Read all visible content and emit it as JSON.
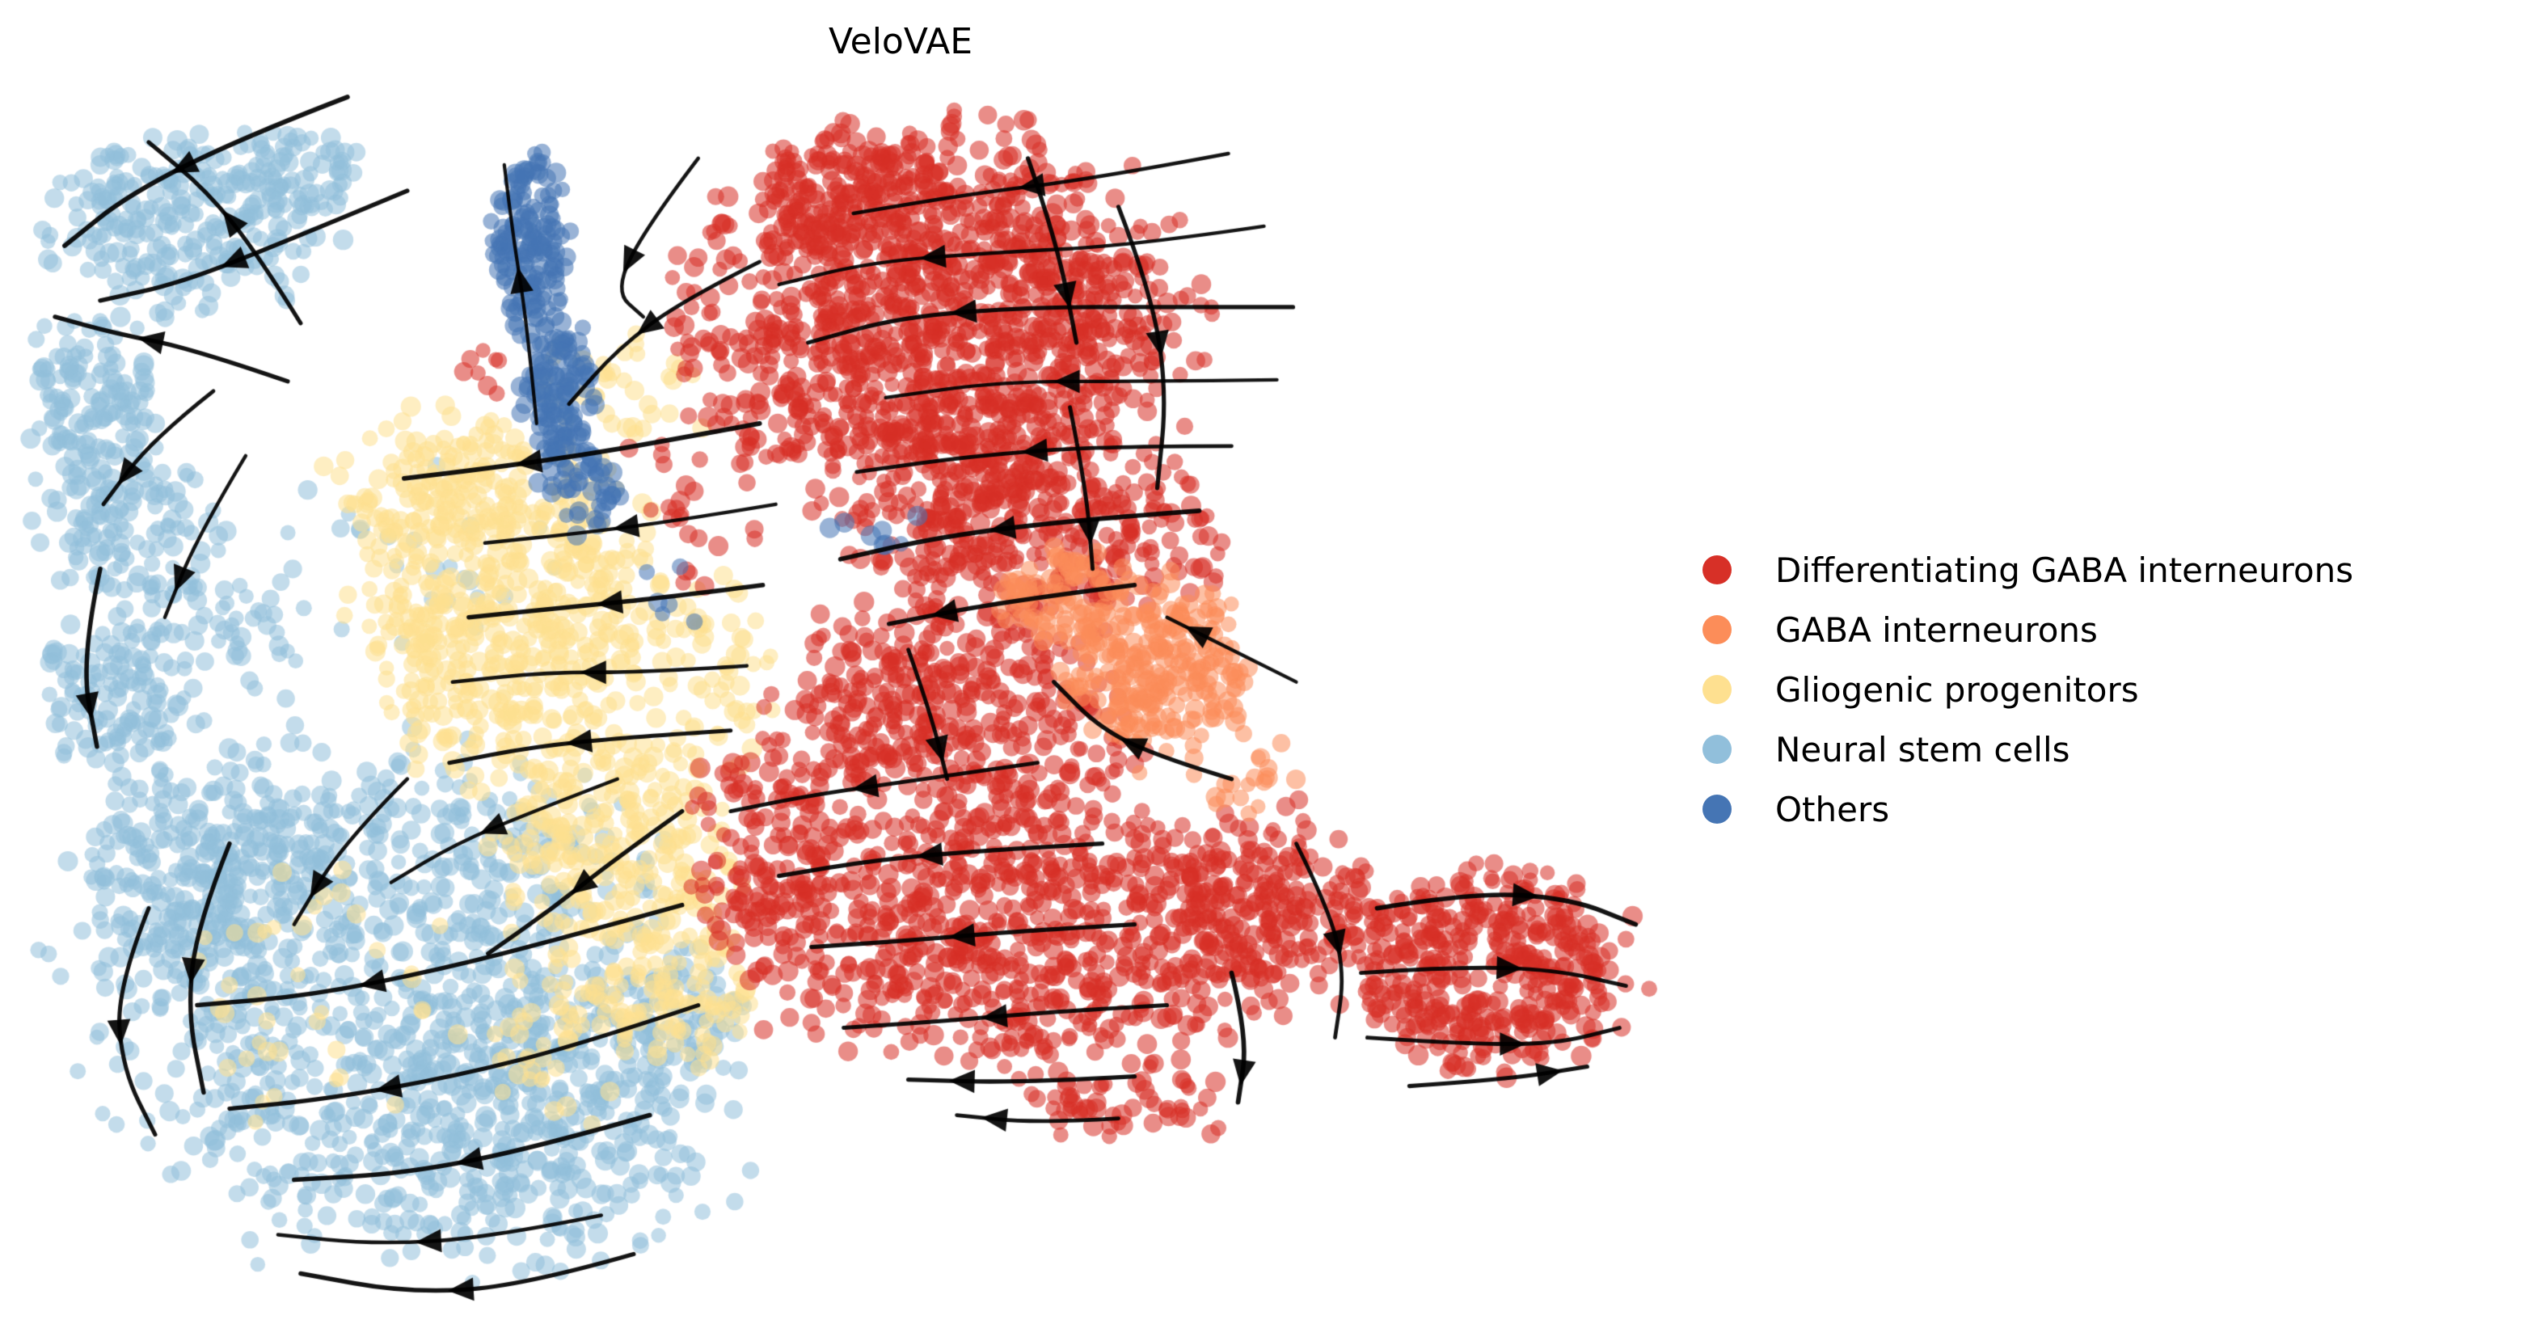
{
  "chart_data": {
    "type": "scatter",
    "title": "VeloVAE",
    "xlabel": "",
    "ylabel": "",
    "description": "UMAP embedding scatter plot of cells colored by cell type with RNA-velocity streamlines (black curves with arrowheads) overlaid.",
    "layout": {
      "space": [
        1561,
        817
      ],
      "axes": "off",
      "grid": false,
      "legend_position": "right",
      "background": "#ffffff"
    },
    "stream_color": "#000000",
    "series": [
      {
        "name": "Differentiating GABA interneurons",
        "color": "#d73027"
      },
      {
        "name": "GABA interneurons",
        "color": "#fc8d59"
      },
      {
        "name": "Gliogenic progenitors",
        "color": "#fee090"
      },
      {
        "name": "Neural stem cells",
        "color": "#91bfdb"
      },
      {
        "name": "Others",
        "color": "#4575b4"
      }
    ],
    "clusters": [
      {
        "series": "Neural stem cells",
        "blobs": [
          {
            "cx": 115,
            "cy": 135,
            "rx": 85,
            "ry": 55,
            "n": 260
          },
          {
            "cx": 185,
            "cy": 105,
            "rx": 40,
            "ry": 25,
            "n": 60
          },
          {
            "cx": 55,
            "cy": 250,
            "rx": 40,
            "ry": 60,
            "n": 140
          },
          {
            "cx": 80,
            "cy": 330,
            "rx": 55,
            "ry": 50,
            "n": 130
          },
          {
            "cx": 75,
            "cy": 430,
            "rx": 50,
            "ry": 55,
            "n": 140
          },
          {
            "cx": 150,
            "cy": 390,
            "rx": 45,
            "ry": 45,
            "n": 40
          },
          {
            "cx": 230,
            "cy": 610,
            "rx": 175,
            "ry": 155,
            "n": 900
          },
          {
            "cx": 130,
            "cy": 540,
            "rx": 80,
            "ry": 70,
            "n": 220
          },
          {
            "cx": 330,
            "cy": 700,
            "rx": 120,
            "ry": 90,
            "n": 300
          },
          {
            "cx": 420,
            "cy": 630,
            "rx": 40,
            "ry": 45,
            "n": 80
          },
          {
            "cx": 250,
            "cy": 350,
            "rx": 90,
            "ry": 70,
            "n": 25
          }
        ]
      },
      {
        "series": "Gliogenic progenitors",
        "blobs": [
          {
            "cx": 315,
            "cy": 380,
            "rx": 95,
            "ry": 100,
            "n": 550
          },
          {
            "cx": 270,
            "cy": 300,
            "rx": 60,
            "ry": 45,
            "n": 120
          },
          {
            "cx": 380,
            "cy": 520,
            "rx": 75,
            "ry": 70,
            "n": 250
          },
          {
            "cx": 420,
            "cy": 610,
            "rx": 45,
            "ry": 50,
            "n": 100
          },
          {
            "cx": 350,
            "cy": 640,
            "rx": 60,
            "ry": 50,
            "n": 60
          },
          {
            "cx": 440,
            "cy": 420,
            "rx": 35,
            "ry": 60,
            "n": 60
          },
          {
            "cx": 380,
            "cy": 240,
            "rx": 60,
            "ry": 40,
            "n": 40
          },
          {
            "cx": 200,
            "cy": 620,
            "rx": 100,
            "ry": 80,
            "n": 40
          }
        ]
      },
      {
        "series": "Differentiating GABA interneurons",
        "blobs": [
          {
            "cx": 580,
            "cy": 200,
            "rx": 150,
            "ry": 120,
            "n": 1300
          },
          {
            "cx": 520,
            "cy": 120,
            "rx": 60,
            "ry": 40,
            "n": 120
          },
          {
            "cx": 640,
            "cy": 330,
            "rx": 110,
            "ry": 60,
            "n": 350
          },
          {
            "cx": 590,
            "cy": 450,
            "rx": 110,
            "ry": 80,
            "n": 450
          },
          {
            "cx": 620,
            "cy": 580,
            "rx": 170,
            "ry": 80,
            "n": 700
          },
          {
            "cx": 790,
            "cy": 560,
            "rx": 70,
            "ry": 60,
            "n": 220
          },
          {
            "cx": 920,
            "cy": 600,
            "rx": 90,
            "ry": 62,
            "n": 420
          },
          {
            "cx": 470,
            "cy": 520,
            "rx": 50,
            "ry": 60,
            "n": 120
          },
          {
            "cx": 430,
            "cy": 300,
            "rx": 40,
            "ry": 60,
            "n": 30
          },
          {
            "cx": 300,
            "cy": 230,
            "rx": 20,
            "ry": 15,
            "n": 8
          },
          {
            "cx": 700,
            "cy": 680,
            "rx": 60,
            "ry": 30,
            "n": 60
          }
        ]
      },
      {
        "series": "GABA interneurons",
        "blobs": [
          {
            "cx": 715,
            "cy": 415,
            "rx": 60,
            "ry": 55,
            "n": 260
          },
          {
            "cx": 660,
            "cy": 370,
            "rx": 40,
            "ry": 30,
            "n": 80
          },
          {
            "cx": 770,
            "cy": 480,
            "rx": 30,
            "ry": 30,
            "n": 20
          }
        ]
      },
      {
        "series": "Others",
        "blobs": [
          {
            "cx": 328,
            "cy": 150,
            "rx": 22,
            "ry": 55,
            "n": 160
          },
          {
            "cx": 345,
            "cy": 240,
            "rx": 22,
            "ry": 50,
            "n": 120
          },
          {
            "cx": 360,
            "cy": 300,
            "rx": 25,
            "ry": 30,
            "n": 50
          },
          {
            "cx": 540,
            "cy": 330,
            "rx": 50,
            "ry": 18,
            "n": 8
          },
          {
            "cx": 420,
            "cy": 362,
            "rx": 28,
            "ry": 25,
            "n": 6
          }
        ]
      }
    ],
    "streamlines": [
      {
        "points": [
          [
            215,
            60
          ],
          [
            150,
            85
          ],
          [
            80,
            120
          ],
          [
            40,
            152
          ]
        ]
      },
      {
        "points": [
          [
            252,
            118
          ],
          [
            180,
            148
          ],
          [
            112,
            175
          ],
          [
            62,
            186
          ]
        ]
      },
      {
        "points": [
          [
            178,
            236
          ],
          [
            120,
            216
          ],
          [
            70,
            206
          ],
          [
            34,
            196
          ]
        ]
      },
      {
        "points": [
          [
            186,
            200
          ],
          [
            160,
            158
          ],
          [
            128,
            118
          ],
          [
            92,
            88
          ]
        ]
      },
      {
        "points": [
          [
            132,
            242
          ],
          [
            94,
            272
          ],
          [
            64,
            312
          ]
        ]
      },
      {
        "points": [
          [
            152,
            282
          ],
          [
            122,
            332
          ],
          [
            102,
            382
          ]
        ]
      },
      {
        "points": [
          [
            62,
            352
          ],
          [
            50,
            408
          ],
          [
            60,
            462
          ]
        ]
      },
      {
        "points": [
          [
            332,
            262
          ],
          [
            326,
            200
          ],
          [
            318,
            150
          ],
          [
            312,
            102
          ]
        ]
      },
      {
        "points": [
          [
            470,
            162
          ],
          [
            422,
            186
          ],
          [
            382,
            216
          ],
          [
            352,
            250
          ]
        ]
      },
      {
        "points": [
          [
            432,
            98
          ],
          [
            400,
            140
          ],
          [
            380,
            180
          ],
          [
            398,
            196
          ]
        ]
      },
      {
        "points": [
          [
            760,
            95
          ],
          [
            680,
            110
          ],
          [
            600,
            120
          ],
          [
            528,
            132
          ]
        ]
      },
      {
        "points": [
          [
            782,
            140
          ],
          [
            700,
            152
          ],
          [
            618,
            156
          ],
          [
            540,
            162
          ],
          [
            482,
            176
          ]
        ]
      },
      {
        "points": [
          [
            800,
            190
          ],
          [
            718,
            190
          ],
          [
            638,
            190
          ],
          [
            558,
            196
          ],
          [
            500,
            212
          ]
        ]
      },
      {
        "points": [
          [
            790,
            235
          ],
          [
            704,
            236
          ],
          [
            620,
            236
          ],
          [
            548,
            246
          ]
        ]
      },
      {
        "points": [
          [
            762,
            276
          ],
          [
            682,
            276
          ],
          [
            602,
            282
          ],
          [
            530,
            292
          ]
        ]
      },
      {
        "points": [
          [
            742,
            316
          ],
          [
            662,
            322
          ],
          [
            582,
            332
          ],
          [
            520,
            346
          ]
        ]
      },
      {
        "points": [
          [
            702,
            362
          ],
          [
            622,
            372
          ],
          [
            550,
            386
          ]
        ]
      },
      {
        "points": [
          [
            692,
            128
          ],
          [
            712,
            180
          ],
          [
            722,
            242
          ],
          [
            716,
            302
          ]
        ]
      },
      {
        "points": [
          [
            636,
            98
          ],
          [
            654,
            150
          ],
          [
            666,
            212
          ]
        ]
      },
      {
        "points": [
          [
            470,
            262
          ],
          [
            416,
            272
          ],
          [
            358,
            282
          ],
          [
            300,
            290
          ],
          [
            250,
            296
          ]
        ]
      },
      {
        "points": [
          [
            480,
            312
          ],
          [
            420,
            322
          ],
          [
            358,
            330
          ],
          [
            300,
            336
          ]
        ]
      },
      {
        "points": [
          [
            472,
            362
          ],
          [
            410,
            370
          ],
          [
            348,
            376
          ],
          [
            290,
            382
          ]
        ]
      },
      {
        "points": [
          [
            462,
            412
          ],
          [
            400,
            416
          ],
          [
            338,
            416
          ],
          [
            280,
            422
          ]
        ]
      },
      {
        "points": [
          [
            452,
            452
          ],
          [
            390,
            456
          ],
          [
            330,
            462
          ],
          [
            278,
            472
          ]
        ]
      },
      {
        "points": [
          [
            382,
            482
          ],
          [
            330,
            502
          ],
          [
            282,
            522
          ],
          [
            242,
            546
          ]
        ]
      },
      {
        "points": [
          [
            422,
            502
          ],
          [
            380,
            532
          ],
          [
            342,
            562
          ],
          [
            302,
            590
          ]
        ]
      },
      {
        "points": [
          [
            422,
            560
          ],
          [
            350,
            580
          ],
          [
            272,
            600
          ],
          [
            192,
            616
          ],
          [
            122,
            622
          ]
        ]
      },
      {
        "points": [
          [
            432,
            622
          ],
          [
            360,
            646
          ],
          [
            282,
            666
          ],
          [
            202,
            680
          ],
          [
            142,
            686
          ]
        ]
      },
      {
        "points": [
          [
            402,
            690
          ],
          [
            332,
            710
          ],
          [
            252,
            726
          ],
          [
            182,
            730
          ]
        ]
      },
      {
        "points": [
          [
            372,
            752
          ],
          [
            302,
            766
          ],
          [
            232,
            770
          ],
          [
            172,
            764
          ]
        ]
      },
      {
        "points": [
          [
            92,
            562
          ],
          [
            72,
            612
          ],
          [
            76,
            662
          ],
          [
            96,
            702
          ]
        ]
      },
      {
        "points": [
          [
            142,
            522
          ],
          [
            122,
            572
          ],
          [
            116,
            626
          ],
          [
            126,
            676
          ]
        ]
      },
      {
        "points": [
          [
            252,
            482
          ],
          [
            212,
            522
          ],
          [
            182,
            572
          ]
        ]
      },
      {
        "points": [
          [
            392,
            776
          ],
          [
            322,
            796
          ],
          [
            252,
            800
          ],
          [
            186,
            788
          ]
        ]
      },
      {
        "points": [
          [
            642,
            472
          ],
          [
            572,
            482
          ],
          [
            502,
            492
          ],
          [
            452,
            502
          ]
        ]
      },
      {
        "points": [
          [
            682,
            522
          ],
          [
            612,
            526
          ],
          [
            542,
            532
          ],
          [
            482,
            542
          ]
        ]
      },
      {
        "points": [
          [
            702,
            572
          ],
          [
            632,
            576
          ],
          [
            562,
            582
          ],
          [
            502,
            586
          ]
        ]
      },
      {
        "points": [
          [
            722,
            622
          ],
          [
            652,
            626
          ],
          [
            582,
            632
          ],
          [
            522,
            636
          ]
        ]
      },
      {
        "points": [
          [
            702,
            666
          ],
          [
            632,
            670
          ],
          [
            562,
            668
          ]
        ]
      },
      {
        "points": [
          [
            762,
            482
          ],
          [
            722,
            470
          ],
          [
            682,
            452
          ],
          [
            652,
            422
          ]
        ]
      },
      {
        "points": [
          [
            802,
            422
          ],
          [
            762,
            402
          ],
          [
            722,
            382
          ]
        ]
      },
      {
        "points": [
          [
            852,
            562
          ],
          [
            912,
            552
          ],
          [
            972,
            556
          ],
          [
            1012,
            572
          ]
        ]
      },
      {
        "points": [
          [
            842,
            602
          ],
          [
            902,
            598
          ],
          [
            962,
            600
          ],
          [
            1006,
            610
          ]
        ]
      },
      {
        "points": [
          [
            846,
            642
          ],
          [
            906,
            646
          ],
          [
            962,
            646
          ],
          [
            1002,
            636
          ]
        ]
      },
      {
        "points": [
          [
            872,
            672
          ],
          [
            932,
            668
          ],
          [
            982,
            660
          ]
        ]
      },
      {
        "points": [
          [
            802,
            522
          ],
          [
            822,
            562
          ],
          [
            832,
            602
          ],
          [
            826,
            642
          ]
        ]
      },
      {
        "points": [
          [
            762,
            602
          ],
          [
            772,
            642
          ],
          [
            766,
            682
          ]
        ]
      },
      {
        "points": [
          [
            692,
            692
          ],
          [
            642,
            695
          ],
          [
            592,
            690
          ]
        ]
      },
      {
        "points": [
          [
            562,
            402
          ],
          [
            576,
            442
          ],
          [
            586,
            482
          ]
        ]
      },
      {
        "points": [
          [
            662,
            252
          ],
          [
            672,
            302
          ],
          [
            676,
            352
          ]
        ]
      }
    ]
  }
}
